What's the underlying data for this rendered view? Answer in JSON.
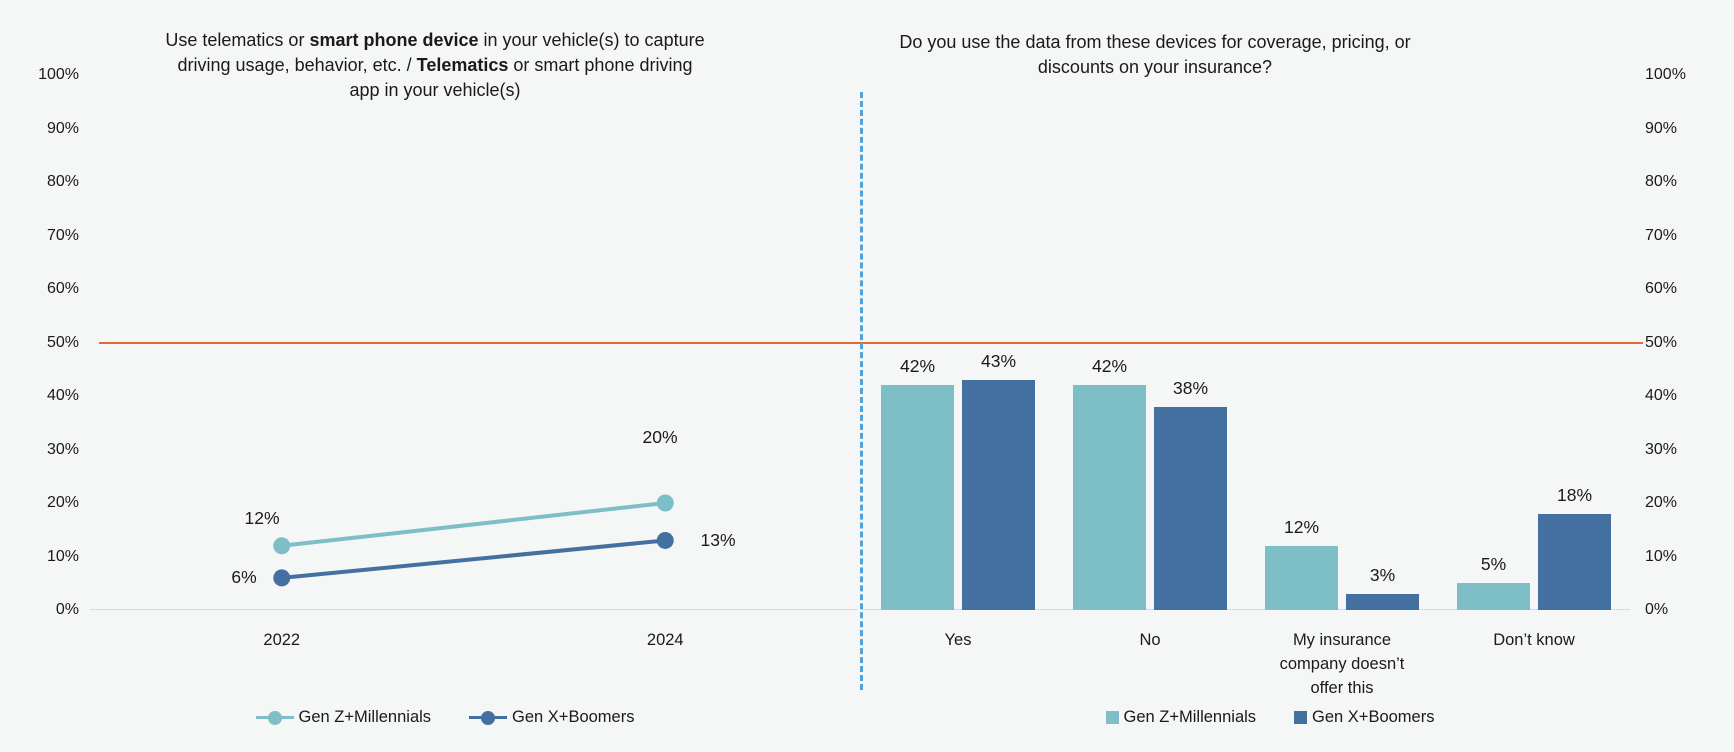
{
  "colors": {
    "background": "#F5F6F6",
    "teal": "#7EBFC7",
    "blue": "#4470A1",
    "reference_line_orange": "#E2693B",
    "divider_blue": "#4FA2DC",
    "axis_line_gray": "#D9D9D9",
    "text": "#1A1A1A"
  },
  "y_axis": {
    "tick_labels": [
      "100%",
      "90%",
      "80%",
      "70%",
      "60%",
      "50%",
      "40%",
      "30%",
      "20%",
      "10%",
      "0%"
    ],
    "reference_line_label": "50%"
  },
  "left_chart": {
    "title_lines": [
      [
        {
          "t": "Use telematics or "
        },
        {
          "t": "smart phone device",
          "b": 1
        },
        {
          "t": " in your vehicle(s) to capture"
        }
      ],
      [
        {
          "t": "driving usage, behavior, etc. / "
        },
        {
          "t": "Telematics",
          "b": 1
        },
        {
          "t": " or smart phone driving"
        }
      ],
      [
        {
          "t": "app in your vehicle(s)"
        }
      ]
    ]
  },
  "right_chart": {
    "title_lines": [
      [
        {
          "t": "Do you use the data from these devices for coverage, pricing, or"
        }
      ],
      [
        {
          "t": "discounts on your insurance?"
        }
      ]
    ]
  },
  "chart_data": [
    {
      "type": "line",
      "title": "Use telematics or smart phone device in your vehicle(s) to capture driving usage, behavior, etc. / Telematics or smart phone driving app in your vehicle(s)",
      "categories": [
        "2022",
        "2024"
      ],
      "series": [
        {
          "name": "Gen Z+Millennials",
          "values": [
            12,
            20
          ],
          "point_labels": [
            "12%",
            "20%"
          ],
          "color": "#7EBFC7"
        },
        {
          "name": "Gen X+Boomers",
          "values": [
            6,
            13
          ],
          "point_labels": [
            "6%",
            "13%"
          ],
          "color": "#4470A1"
        }
      ],
      "ylim": [
        0,
        100
      ],
      "ytick_step": 10,
      "reference_line_y": 50,
      "grid": false,
      "legend_position": "bottom"
    },
    {
      "type": "bar",
      "title": "Do you use the data from these devices for coverage, pricing, or discounts on your insurance?",
      "categories": [
        "Yes",
        "No",
        "My insurance company doesn’t offer this",
        "Don’t know"
      ],
      "series": [
        {
          "name": "Gen Z+Millennials",
          "values": [
            42,
            42,
            12,
            5
          ],
          "point_labels": [
            "42%",
            "42%",
            "12%",
            "5%"
          ],
          "color": "#7EBFC7"
        },
        {
          "name": "Gen X+Boomers",
          "values": [
            43,
            38,
            3,
            18
          ],
          "point_labels": [
            "43%",
            "38%",
            "3%",
            "18%"
          ],
          "color": "#4470A1"
        }
      ],
      "ylim": [
        0,
        100
      ],
      "ytick_step": 10,
      "reference_line_y": 50,
      "grid": false,
      "legend_position": "bottom"
    }
  ]
}
